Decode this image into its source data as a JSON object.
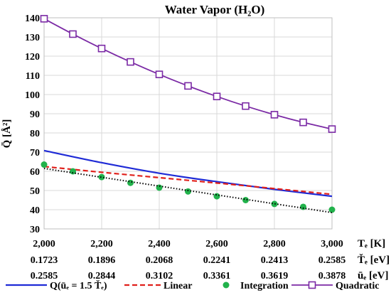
{
  "chart_data": {
    "type": "line",
    "title": "Water Vapor (H₂O)",
    "ylabel": "Q̄ [Å²]",
    "ylim": [
      30,
      140
    ],
    "yticks": [
      30,
      40,
      50,
      60,
      70,
      80,
      90,
      100,
      110,
      120,
      130,
      140
    ],
    "xlim": [
      2000,
      3000
    ],
    "grid": true,
    "legend_position": "bottom",
    "x_axis_rows": [
      {
        "label": "Tₑ [K]",
        "ticks": [
          "2,000",
          "2,200",
          "2,400",
          "2,600",
          "2,800",
          "3,000"
        ]
      },
      {
        "label": "Ťₑ [eV]",
        "ticks": [
          "0.1723",
          "0.1896",
          "0.2068",
          "0.2241",
          "0.2413",
          "0.2585"
        ]
      },
      {
        "label": "ūₑ [eV]",
        "ticks": [
          "0.2585",
          "0.2844",
          "0.3102",
          "0.3361",
          "0.3619",
          "0.3878"
        ]
      }
    ],
    "series": [
      {
        "name": "Q(ūₑ = 1.5 Ťₑ)",
        "style": "solid",
        "color": "#1f2bd6",
        "x": [
          2000,
          2200,
          2400,
          2600,
          2800,
          3000
        ],
        "y": [
          70.8,
          64.5,
          59.0,
          54.6,
          50.6,
          47.0
        ]
      },
      {
        "name": "Linear",
        "style": "dashed",
        "color": "#e0201b",
        "x": [
          2000,
          2200,
          2400,
          2600,
          2800,
          3000
        ],
        "y": [
          62.5,
          59.5,
          56.7,
          53.9,
          51.0,
          48.0
        ]
      },
      {
        "name": "Integration",
        "style": "markers",
        "color": "#21b24b",
        "x": [
          2000,
          2100,
          2200,
          2300,
          2400,
          2500,
          2600,
          2700,
          2800,
          2900,
          3000
        ],
        "y": [
          63.5,
          60.0,
          57.0,
          54.0,
          51.5,
          49.5,
          47.0,
          45.0,
          43.0,
          41.5,
          40.0
        ]
      },
      {
        "name": "",
        "style": "dotted",
        "color": "#000000",
        "x": [
          2000,
          3000
        ],
        "y": [
          61.5,
          38.5
        ]
      },
      {
        "name": "Quadratic",
        "style": "line-square-markers",
        "color": "#7b2aa5",
        "x": [
          2000,
          2100,
          2200,
          2300,
          2400,
          2500,
          2600,
          2700,
          2800,
          2900,
          3000
        ],
        "y": [
          139.5,
          131.5,
          124.0,
          117.0,
          110.5,
          104.5,
          99.0,
          94.0,
          89.5,
          85.5,
          82.0
        ]
      }
    ]
  }
}
